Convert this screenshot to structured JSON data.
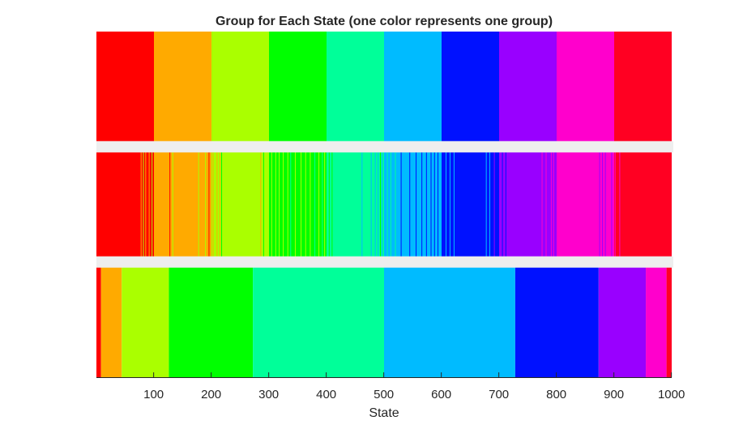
{
  "chart_data": {
    "type": "heatmap",
    "title": "Group for Each State (one color represents one group)",
    "xlabel": "State",
    "ylabel": "",
    "xlim": [
      1,
      1000
    ],
    "xticks": [
      "100",
      "200",
      "300",
      "400",
      "500",
      "600",
      "700",
      "800",
      "900",
      "1000"
    ],
    "grid": false,
    "legend": "none",
    "group_colors": {
      "1": "#ff0000",
      "2": "#ffaa00",
      "3": "#aaff00",
      "4": "#00ff00",
      "5": "#00ff99",
      "6": "#00bbff",
      "7": "#0011ff",
      "8": "#9900ff",
      "9": "#ff00cc",
      "10": "#ff0022"
    },
    "rows": [
      {
        "row": 1,
        "segments": [
          {
            "start": 1,
            "end": 100,
            "group": 1
          },
          {
            "start": 101,
            "end": 200,
            "group": 2
          },
          {
            "start": 201,
            "end": 300,
            "group": 3
          },
          {
            "start": 301,
            "end": 400,
            "group": 4
          },
          {
            "start": 401,
            "end": 500,
            "group": 5
          },
          {
            "start": 501,
            "end": 600,
            "group": 6
          },
          {
            "start": 601,
            "end": 700,
            "group": 7
          },
          {
            "start": 701,
            "end": 800,
            "group": 8
          },
          {
            "start": 801,
            "end": 900,
            "group": 9
          },
          {
            "start": 901,
            "end": 1000,
            "group": 10
          }
        ]
      },
      {
        "row": 2,
        "segments": [
          {
            "start": 1,
            "end": 100,
            "group": 1
          },
          {
            "start": 101,
            "end": 200,
            "group": 2
          },
          {
            "start": 201,
            "end": 300,
            "group": 3
          },
          {
            "start": 301,
            "end": 400,
            "group": 4
          },
          {
            "start": 401,
            "end": 500,
            "group": 5
          },
          {
            "start": 501,
            "end": 600,
            "group": 6
          },
          {
            "start": 601,
            "end": 700,
            "group": 7
          },
          {
            "start": 701,
            "end": 800,
            "group": 8
          },
          {
            "start": 801,
            "end": 900,
            "group": 9
          },
          {
            "start": 901,
            "end": 1000,
            "group": 10
          }
        ],
        "stripes": [
          {
            "state": 78,
            "group": 2
          },
          {
            "state": 82,
            "group": 3
          },
          {
            "state": 86,
            "group": 2
          },
          {
            "state": 92,
            "group": 2
          },
          {
            "state": 97,
            "group": 3
          },
          {
            "state": 128,
            "group": 1
          },
          {
            "state": 133,
            "group": 3
          },
          {
            "state": 178,
            "group": 3
          },
          {
            "state": 184,
            "group": 2
          },
          {
            "state": 190,
            "group": 3
          },
          {
            "state": 196,
            "group": 1
          },
          {
            "state": 203,
            "group": 2
          },
          {
            "state": 210,
            "group": 2
          },
          {
            "state": 215,
            "group": 2
          },
          {
            "state": 218,
            "group": 4
          },
          {
            "state": 286,
            "group": 2
          },
          {
            "state": 291,
            "group": 4
          },
          {
            "state": 296,
            "group": 3
          },
          {
            "state": 305,
            "group": 3
          },
          {
            "state": 312,
            "group": 3
          },
          {
            "state": 318,
            "group": 3
          },
          {
            "state": 325,
            "group": 3
          },
          {
            "state": 333,
            "group": 3
          },
          {
            "state": 338,
            "group": 5
          },
          {
            "state": 346,
            "group": 3
          },
          {
            "state": 356,
            "group": 3
          },
          {
            "state": 364,
            "group": 3
          },
          {
            "state": 372,
            "group": 3
          },
          {
            "state": 380,
            "group": 5
          },
          {
            "state": 387,
            "group": 3
          },
          {
            "state": 393,
            "group": 5
          },
          {
            "state": 397,
            "group": 3
          },
          {
            "state": 405,
            "group": 4
          },
          {
            "state": 410,
            "group": 4
          },
          {
            "state": 462,
            "group": 6
          },
          {
            "state": 478,
            "group": 6
          },
          {
            "state": 485,
            "group": 6
          },
          {
            "state": 490,
            "group": 6
          },
          {
            "state": 494,
            "group": 4
          },
          {
            "state": 497,
            "group": 6
          },
          {
            "state": 506,
            "group": 5
          },
          {
            "state": 512,
            "group": 5
          },
          {
            "state": 520,
            "group": 5
          },
          {
            "state": 530,
            "group": 7
          },
          {
            "state": 545,
            "group": 7
          },
          {
            "state": 556,
            "group": 7
          },
          {
            "state": 566,
            "group": 7
          },
          {
            "state": 574,
            "group": 7
          },
          {
            "state": 582,
            "group": 7
          },
          {
            "state": 588,
            "group": 7
          },
          {
            "state": 594,
            "group": 7
          },
          {
            "state": 608,
            "group": 6
          },
          {
            "state": 615,
            "group": 6
          },
          {
            "state": 622,
            "group": 6
          },
          {
            "state": 678,
            "group": 6
          },
          {
            "state": 684,
            "group": 6
          },
          {
            "state": 692,
            "group": 8
          },
          {
            "state": 706,
            "group": 7
          },
          {
            "state": 712,
            "group": 7
          },
          {
            "state": 775,
            "group": 9
          },
          {
            "state": 782,
            "group": 9
          },
          {
            "state": 791,
            "group": 9
          },
          {
            "state": 795,
            "group": 9
          },
          {
            "state": 875,
            "group": 8
          },
          {
            "state": 880,
            "group": 8
          },
          {
            "state": 885,
            "group": 8
          },
          {
            "state": 896,
            "group": 8
          },
          {
            "state": 902,
            "group": 9
          },
          {
            "state": 910,
            "group": 9
          }
        ]
      },
      {
        "row": 3,
        "segments": [
          {
            "start": 1,
            "end": 8,
            "group": 1
          },
          {
            "start": 9,
            "end": 44,
            "group": 2
          },
          {
            "start": 45,
            "end": 126,
            "group": 3
          },
          {
            "start": 127,
            "end": 272,
            "group": 4
          },
          {
            "start": 273,
            "end": 500,
            "group": 5
          },
          {
            "start": 501,
            "end": 728,
            "group": 6
          },
          {
            "start": 729,
            "end": 873,
            "group": 7
          },
          {
            "start": 874,
            "end": 955,
            "group": 8
          },
          {
            "start": 956,
            "end": 991,
            "group": 9
          },
          {
            "start": 992,
            "end": 1000,
            "group": 10
          }
        ]
      }
    ]
  }
}
